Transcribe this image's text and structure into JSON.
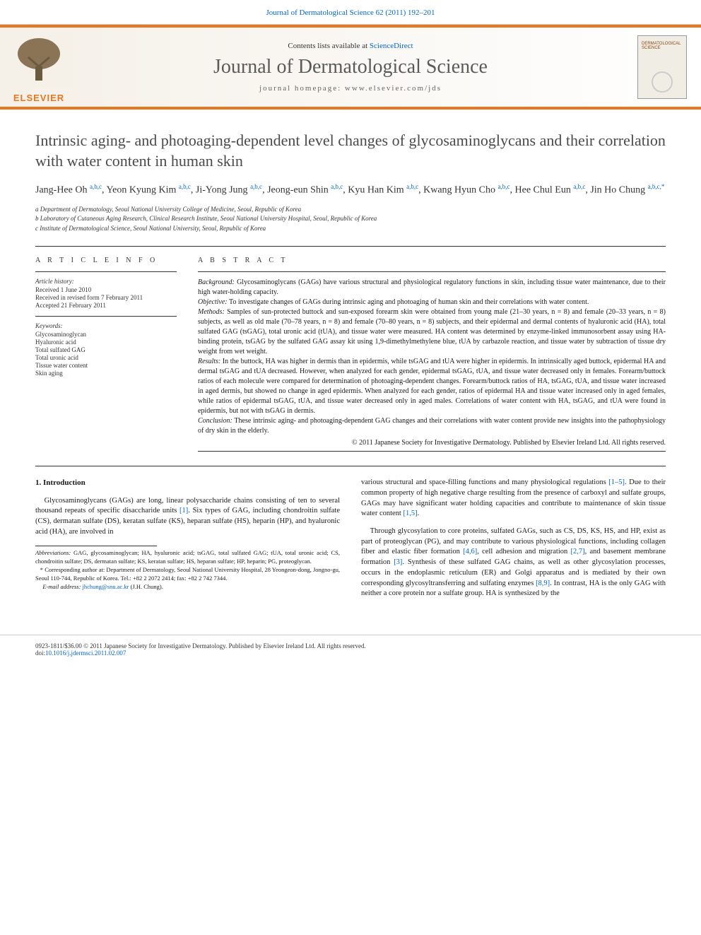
{
  "header": {
    "journal_ref": "Journal of Dermatological Science 62 (2011) 192–201",
    "contents_prefix": "Contents lists available at ",
    "contents_link": "ScienceDirect",
    "journal_name": "Journal of Dermatological Science",
    "homepage": "journal homepage: www.elsevier.com/jds",
    "elsevier": "ELSEVIER"
  },
  "article": {
    "title": "Intrinsic aging- and photoaging-dependent level changes of glycosaminoglycans and their correlation with water content in human skin",
    "authors_html": "Jang-Hee Oh <sup>a,b,c</sup>, Yeon Kyung Kim <sup>a,b,c</sup>, Ji-Yong Jung <sup>a,b,c</sup>, Jeong-eun Shin <sup>a,b,c</sup>, Kyu Han Kim <sup>a,b,c</sup>, Kwang Hyun Cho <sup>a,b,c</sup>, Hee Chul Eun <sup>a,b,c</sup>, Jin Ho Chung <sup>a,b,c,*</sup>",
    "affiliations": [
      "a Department of Dermatology, Seoul National University College of Medicine, Seoul, Republic of Korea",
      "b Laboratory of Cutaneous Aging Research, Clinical Research Institute, Seoul National University Hospital, Seoul, Republic of Korea",
      "c Institute of Dermatological Science, Seoul National University, Seoul, Republic of Korea"
    ]
  },
  "article_info": {
    "heading": "A R T I C L E   I N F O",
    "history_label": "Article history:",
    "history": [
      "Received 1 June 2010",
      "Received in revised form 7 February 2011",
      "Accepted 21 February 2011"
    ],
    "keywords_label": "Keywords:",
    "keywords": [
      "Glycosaminoglycan",
      "Hyaluronic acid",
      "Total sulfated GAG",
      "Total uronic acid",
      "Tissue water content",
      "Skin aging"
    ]
  },
  "abstract": {
    "heading": "A B S T R A C T",
    "sections": [
      {
        "label": "Background:",
        "text": " Glycosaminoglycans (GAGs) have various structural and physiological regulatory functions in skin, including tissue water maintenance, due to their high water-holding capacity."
      },
      {
        "label": "Objective:",
        "text": " To investigate changes of GAGs during intrinsic aging and photoaging of human skin and their correlations with water content."
      },
      {
        "label": "Methods:",
        "text": " Samples of sun-protected buttock and sun-exposed forearm skin were obtained from young male (21–30 years, n = 8) and female (20–33 years, n = 8) subjects, as well as old male (70–78 years, n = 8) and female (70–80 years, n = 8) subjects, and their epidermal and dermal contents of hyaluronic acid (HA), total sulfated GAG (tsGAG), total uronic acid (tUA), and tissue water were measured. HA content was determined by enzyme-linked immunosorbent assay using HA-binding protein, tsGAG by the sulfated GAG assay kit using 1,9-dimethylmethylene blue, tUA by carbazole reaction, and tissue water by subtraction of tissue dry weight from wet weight."
      },
      {
        "label": "Results:",
        "text": " In the buttock, HA was higher in dermis than in epidermis, while tsGAG and tUA were higher in epidermis. In intrinsically aged buttock, epidermal HA and dermal tsGAG and tUA decreased. However, when analyzed for each gender, epidermal tsGAG, tUA, and tissue water decreased only in females. Forearm/buttock ratios of each molecule were compared for determination of photoaging-dependent changes. Forearm/buttock ratios of HA, tsGAG, tUA, and tissue water increased in aged dermis, but showed no change in aged epidermis. When analyzed for each gender, ratios of epidermal HA and tissue water increased only in aged females, while ratios of epidermal tsGAG, tUA, and tissue water decreased only in aged males. Correlations of water content with HA, tsGAG, and tUA were found in epidermis, but not with tsGAG in dermis."
      },
      {
        "label": "Conclusion:",
        "text": " These intrinsic aging- and photoaging-dependent GAG changes and their correlations with water content provide new insights into the pathophysiology of dry skin in the elderly."
      }
    ],
    "copyright": "© 2011 Japanese Society for Investigative Dermatology. Published by Elsevier Ireland Ltd. All rights reserved."
  },
  "body": {
    "intro_heading": "1. Introduction",
    "left_paragraphs": [
      "Glycosaminoglycans (GAGs) are long, linear polysaccharide chains consisting of ten to several thousand repeats of specific disaccharide units <span class='ref-link'>[1]</span>. Six types of GAG, including chondroitin sulfate (CS), dermatan sulfate (DS), keratan sulfate (KS), heparan sulfate (HS), heparin (HP), and hyaluronic acid (HA), are involved in"
    ],
    "right_paragraphs": [
      "various structural and space-filling functions and many physiological regulations <span class='ref-link'>[1–5]</span>. Due to their common property of high negative charge resulting from the presence of carboxyl and sulfate groups, GAGs may have significant water holding capacities and contribute to maintenance of skin tissue water content <span class='ref-link'>[1,5]</span>.",
      "Through glycosylation to core proteins, sulfated GAGs, such as CS, DS, KS, HS, and HP, exist as part of proteoglycan (PG), and may contribute to various physiological functions, including collagen fiber and elastic fiber formation <span class='ref-link'>[4,6]</span>, cell adhesion and migration <span class='ref-link'>[2,7]</span>, and basement membrane formation <span class='ref-link'>[3]</span>. Synthesis of these sulfated GAG chains, as well as other glycosylation processes, occurs in the endoplasmic reticulum (ER) and Golgi apparatus and is mediated by their own corresponding glycosyltransferring and sulfating enzymes <span class='ref-link'>[8,9]</span>. In contrast, HA is the only GAG with neither a core protein nor a sulfate group. HA is synthesized by the"
    ]
  },
  "footnotes": {
    "abbrev_label": "Abbreviations:",
    "abbrev_text": " GAG, glycosaminoglycan; HA, hyaluronic acid; tsGAG, total sulfated GAG; tUA, total uronic acid; CS, chondroitin sulfate; DS, dermatan sulfate; KS, keratan sulfate; HS, heparan sulfate; HP, heparin; PG, proteoglycan.",
    "corresponding_marker": "* ",
    "corresponding_text": "Corresponding author at: Department of Dermatology, Seoul National University Hospital, 28 Yeongeon-dong, Jongno-gu, Seoul 110-744, Republic of Korea. Tel.: +82 2 2072 2414; fax: +82 2 742 7344.",
    "email_label": "E-mail address: ",
    "email": "jhchung@snu.ac.kr",
    "email_suffix": " (J.H. Chung)."
  },
  "footer": {
    "line1": "0923-1811/$36.00 © 2011 Japanese Society for Investigative Dermatology. Published by Elsevier Ireland Ltd. All rights reserved.",
    "doi_label": "doi:",
    "doi": "10.1016/j.jdermsci.2011.02.007"
  }
}
